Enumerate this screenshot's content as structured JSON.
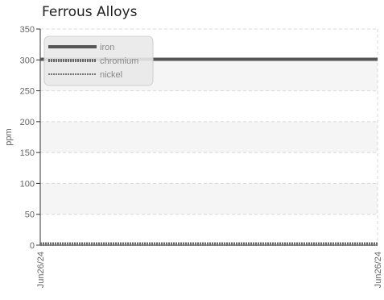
{
  "chart_data": {
    "type": "line",
    "title": "Ferrous Alloys",
    "xlabel": "",
    "ylabel": "ppm",
    "ylim": [
      0,
      350
    ],
    "yticks": [
      0,
      50,
      100,
      150,
      200,
      250,
      300,
      350
    ],
    "x": [
      "Jun26/24",
      "Jun26/24"
    ],
    "grid": true,
    "legend_position": "top-left",
    "series": [
      {
        "name": "iron",
        "values": [
          301,
          301
        ],
        "color": "#555555",
        "style": "solid"
      },
      {
        "name": "chromium",
        "values": [
          2,
          2
        ],
        "color": "#666666",
        "style": "dotted"
      },
      {
        "name": "nickel",
        "values": [
          0,
          0
        ],
        "color": "#777777",
        "style": "dotted-thin"
      }
    ]
  }
}
